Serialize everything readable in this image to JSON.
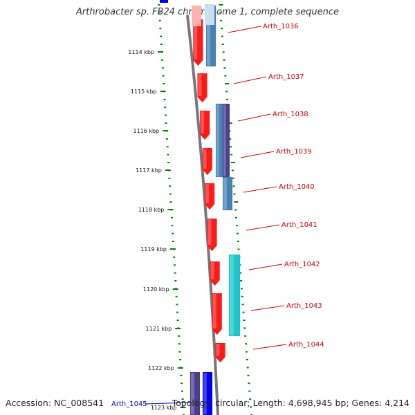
{
  "title": "Arthrobacter sp. FB24 chromosome 1, complete sequence",
  "footer": {
    "accession": "Accession: NC_008541",
    "summary": "Topology: circular; Length: 4,698,945 bp; Genes: 4,214"
  },
  "colors": {
    "forward_gene": "#ff1a1a",
    "reverse_gene": "#4682b4",
    "reverse_gene_dark": "#4b3f8f",
    "cyan_gene": "#19c8c8",
    "blue_gene": "#0000ee",
    "backbone": "#777777",
    "ticks": "#0a7a0a",
    "label_red": "#cc0000",
    "label_blue": "#0000cc"
  },
  "scale_labels": [
    "1114 kbp",
    "1115 kbp",
    "1116 kbp",
    "1117 kbp",
    "1118 kbp",
    "1119 kbp",
    "1120 kbp",
    "1121 kbp",
    "1122 kbp",
    "1123 kbp"
  ],
  "gene_labels": [
    "Arth_1036",
    "Arth_1037",
    "Arth_1038",
    "Arth_1039",
    "Arth_1040",
    "Arth_1041",
    "Arth_1042",
    "Arth_1043",
    "Arth_1044",
    "Arth_1045"
  ]
}
